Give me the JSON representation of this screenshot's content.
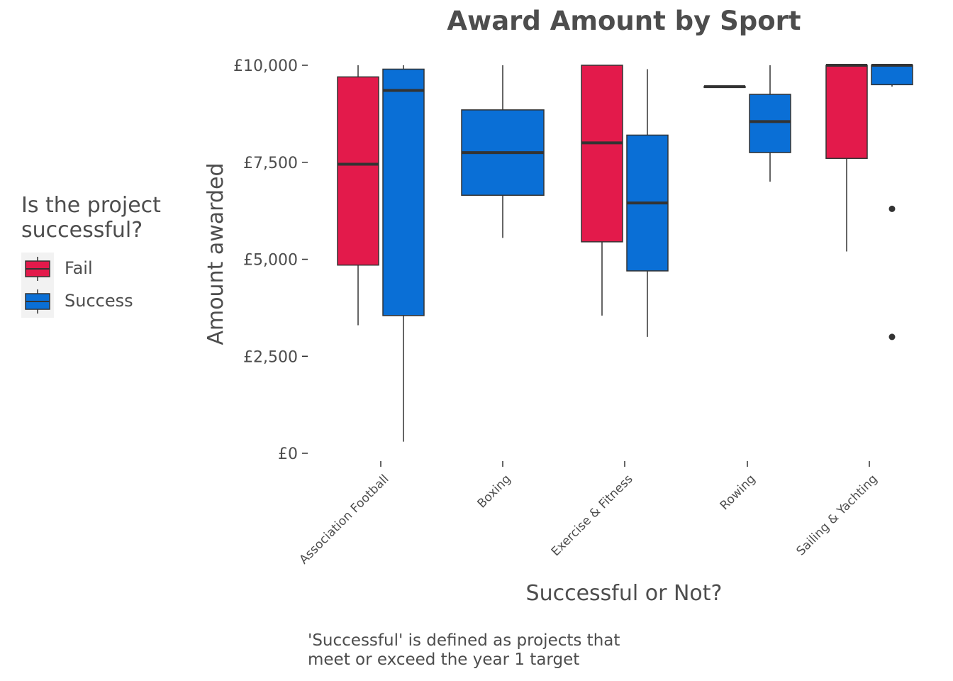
{
  "chart_data": {
    "type": "boxplot",
    "title": "Award Amount by Sport",
    "xlabel": "Successful or Not?",
    "ylabel": "Amount awarded",
    "ylim": [
      0,
      10000
    ],
    "y_ticks": [
      {
        "value": 0,
        "label": "£0"
      },
      {
        "value": 2500,
        "label": "£2,500"
      },
      {
        "value": 5000,
        "label": "£5,000"
      },
      {
        "value": 7500,
        "label": "£7,500"
      },
      {
        "value": 10000,
        "label": "£10,000"
      }
    ],
    "categories": [
      "Association Football",
      "Boxing",
      "Exercise & Fitness",
      "Rowing",
      "Sailing & Yachting"
    ],
    "legend": {
      "title": "Is the project\nsuccessful?",
      "placement": "left",
      "entries": [
        {
          "name": "Fail",
          "color": "#e31a4b"
        },
        {
          "name": "Success",
          "color": "#0a6fd6"
        }
      ]
    },
    "series": [
      {
        "name": "Fail",
        "color": "#e31a4b",
        "boxes": [
          {
            "category": "Association Football",
            "min": 3300,
            "q1": 4850,
            "median": 7450,
            "q3": 9700,
            "max": 10000,
            "outliers": []
          },
          {
            "category": "Exercise & Fitness",
            "min": 3550,
            "q1": 5450,
            "median": 8000,
            "q3": 10000,
            "max": 10000,
            "outliers": []
          },
          {
            "category": "Rowing",
            "min": 9450,
            "q1": 9450,
            "median": 9450,
            "q3": 9450,
            "max": 9450,
            "outliers": []
          },
          {
            "category": "Sailing & Yachting",
            "min": 5200,
            "q1": 7600,
            "median": 10000,
            "q3": 10000,
            "max": 10000,
            "outliers": []
          }
        ]
      },
      {
        "name": "Success",
        "color": "#0a6fd6",
        "boxes": [
          {
            "category": "Association Football",
            "min": 300,
            "q1": 3550,
            "median": 9350,
            "q3": 9900,
            "max": 10000,
            "outliers": []
          },
          {
            "category": "Boxing",
            "min": 5550,
            "q1": 6650,
            "median": 7750,
            "q3": 8850,
            "max": 10000,
            "outliers": []
          },
          {
            "category": "Exercise & Fitness",
            "min": 3000,
            "q1": 4700,
            "median": 6450,
            "q3": 8200,
            "max": 9900,
            "outliers": []
          },
          {
            "category": "Rowing",
            "min": 7000,
            "q1": 7750,
            "median": 8550,
            "q3": 9250,
            "max": 10000,
            "outliers": []
          },
          {
            "category": "Sailing & Yachting",
            "min": 9450,
            "q1": 9500,
            "median": 10000,
            "q3": 10000,
            "max": 10000,
            "outliers": [
              6300,
              3000
            ]
          }
        ]
      }
    ],
    "grid": false
  },
  "caption": [
    "'Successful' is defined as projects that",
    "meet or exceed the year 1 target"
  ]
}
